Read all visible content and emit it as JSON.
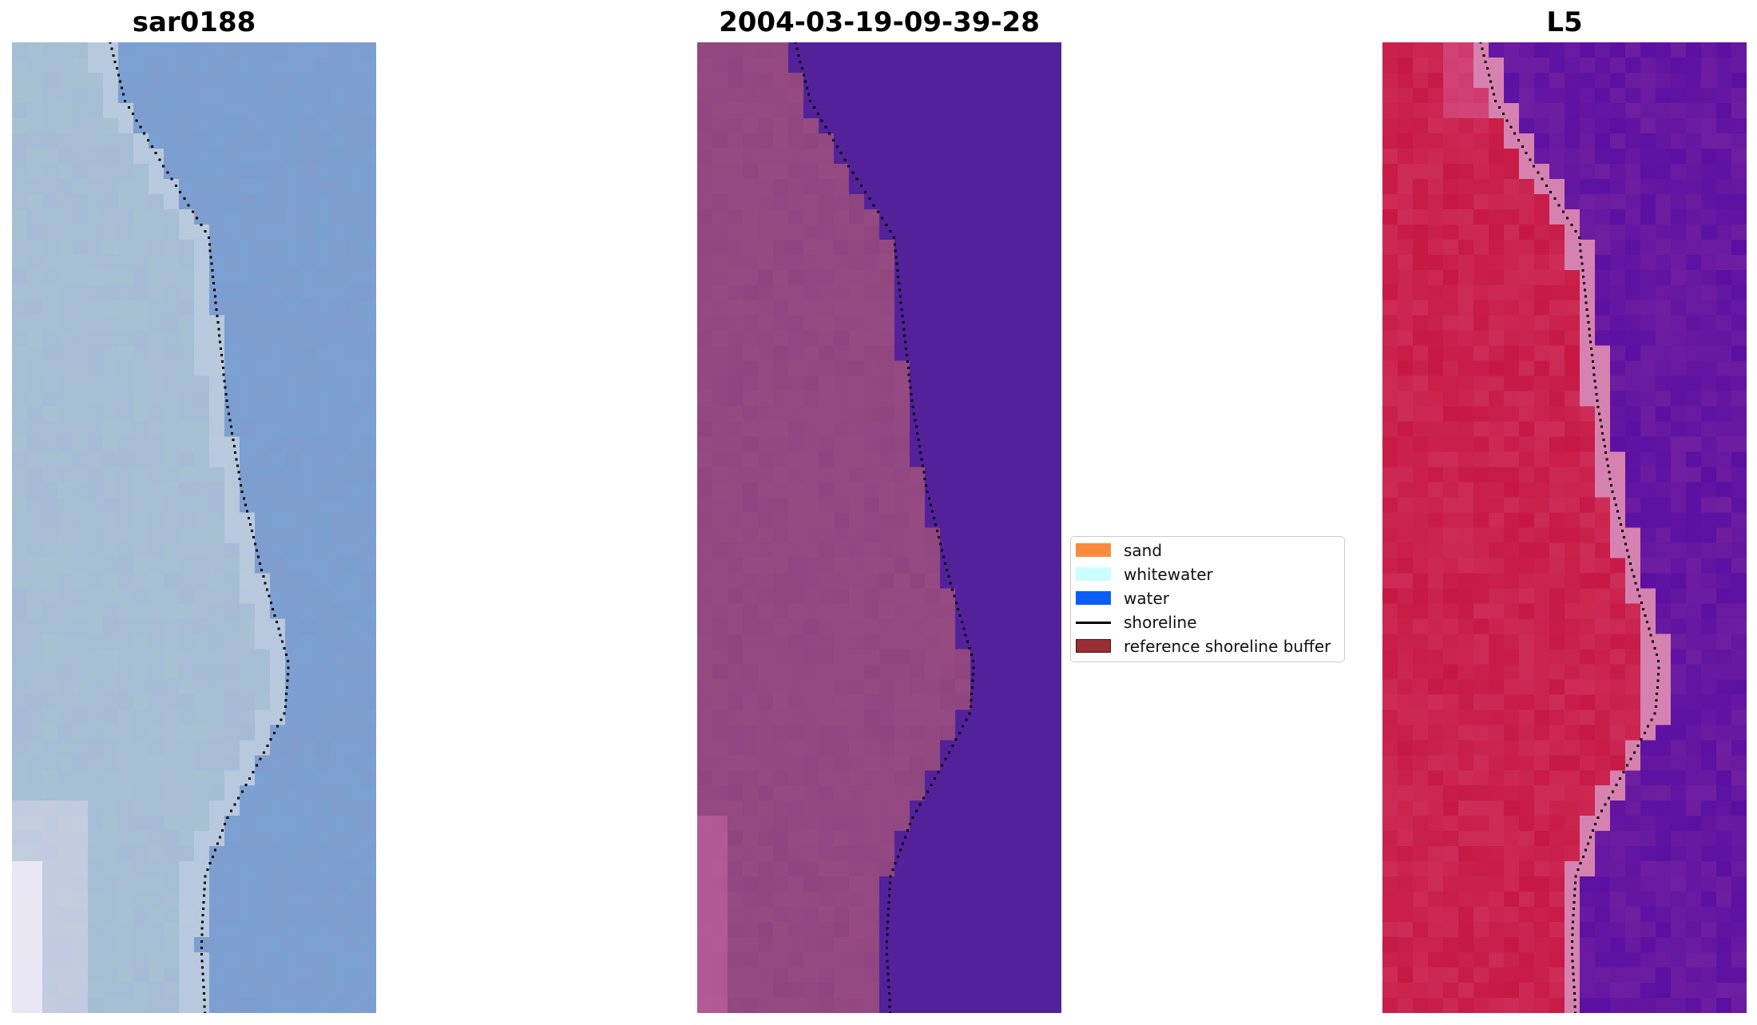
{
  "panels": [
    {
      "title": "sar0188",
      "kind": "rgb"
    },
    {
      "title": "2004-03-19-09-39-28",
      "kind": "classification"
    },
    {
      "title": "L5",
      "kind": "index"
    }
  ],
  "legend": {
    "items": [
      {
        "label": "sand",
        "color": "#f98b3d",
        "type": "patch"
      },
      {
        "label": "whitewater",
        "color": "#ccffff",
        "type": "patch"
      },
      {
        "label": "water",
        "color": "#0a5ef5",
        "type": "patch"
      },
      {
        "label": "shoreline",
        "color": "#000000",
        "type": "line"
      },
      {
        "label": "reference shoreline buffer",
        "color": "#9b2d35",
        "type": "patch",
        "edge": "#4a1015"
      }
    ]
  },
  "colors": {
    "rgb_water": "#7f9dcf",
    "rgb_beach": "#a6bcd6",
    "class_land": "#8f4680",
    "class_water": "#53229b",
    "index_land": "#c71844",
    "index_water": "#5b10a2"
  }
}
